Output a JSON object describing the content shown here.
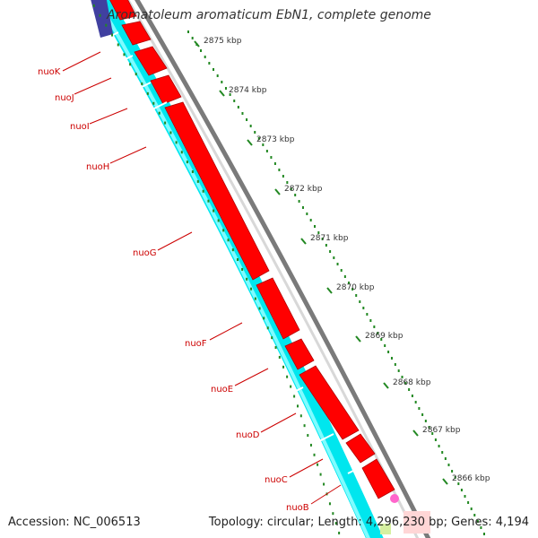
{
  "title": "Aromatoleum aromaticum EbN1, complete genome",
  "footer": {
    "accession": "Accession: NC_006513",
    "summary": "Topology: circular; Length: 4,296,230 bp; Genes: 4,194"
  },
  "colors": {
    "backbone": "#888888",
    "forward_genes": "#ff0000",
    "reverse_genes": "#00ffff",
    "gene_label": "#cc0000",
    "ticks": "#228822",
    "tick_label": "#333333",
    "title": "#333333"
  },
  "ticks": [
    {
      "label": "2875 kbp",
      "value_kbp": 2875
    },
    {
      "label": "2874 kbp",
      "value_kbp": 2874
    },
    {
      "label": "2873 kbp",
      "value_kbp": 2873
    },
    {
      "label": "2872 kbp",
      "value_kbp": 2872
    },
    {
      "label": "2871 kbp",
      "value_kbp": 2871
    },
    {
      "label": "2870 kbp",
      "value_kbp": 2870
    },
    {
      "label": "2869 kbp",
      "value_kbp": 2869
    },
    {
      "label": "2868 kbp",
      "value_kbp": 2868
    },
    {
      "label": "2867 kbp",
      "value_kbp": 2867
    },
    {
      "label": "2866 kbp",
      "value_kbp": 2866
    }
  ],
  "genes": [
    {
      "name": "nuoK"
    },
    {
      "name": "nuoJ"
    },
    {
      "name": "nuoI"
    },
    {
      "name": "nuoH"
    },
    {
      "name": "nuoG"
    },
    {
      "name": "nuoF"
    },
    {
      "name": "nuoE"
    },
    {
      "name": "nuoD"
    },
    {
      "name": "nuoC"
    },
    {
      "name": "nuoB"
    }
  ]
}
